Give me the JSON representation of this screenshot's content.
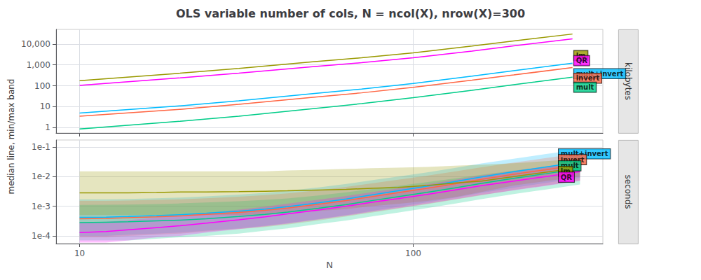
{
  "chart_data": [
    {
      "type": "line",
      "title": "OLS variable number of cols, N = ncol(X), nrow(X)=300",
      "ylabel": "median line, min/max band",
      "side_label": "kilobytes",
      "log": true,
      "grid": true,
      "tick_labels": "y",
      "x": [
        10,
        20,
        30,
        50,
        70,
        100,
        150,
        200,
        300
      ],
      "xlim": [
        8.5,
        370
      ],
      "xticks": [
        10,
        100
      ],
      "ylim": [
        0.55,
        50000
      ],
      "yticks": [
        1,
        10,
        100,
        {
          "value": 1000,
          "label": "1,000"
        },
        {
          "value": 10000,
          "label": "10,000"
        }
      ],
      "series": [
        {
          "name": "lm",
          "color": "#999900",
          "values": [
            175,
            400,
            680,
            1400,
            2200,
            3800,
            8000,
            14000,
            30000
          ],
          "lo": [
            170,
            390,
            665,
            1370,
            2150,
            3720,
            7840,
            13720,
            29400
          ],
          "hi": [
            180,
            410,
            695,
            1430,
            2250,
            3880,
            8160,
            14280,
            30600
          ]
        },
        {
          "name": "QR",
          "color": "#FF00FF",
          "values": [
            105,
            240,
            400,
            820,
            1270,
            2200,
            4600,
            8200,
            17500
          ],
          "lo": [
            100,
            232,
            388,
            796,
            1232,
            2134,
            4462,
            7954,
            16975
          ],
          "hi": [
            110,
            248,
            412,
            844,
            1308,
            2266,
            4738,
            8446,
            18025
          ]
        },
        {
          "name": "mult+invert",
          "color": "#00BBFF",
          "values": [
            5.0,
            11,
            19,
            42,
            70,
            130,
            290,
            530,
            1200
          ],
          "lo": [
            4.8,
            10.6,
            18.4,
            40.7,
            67.9,
            126.1,
            281.3,
            514.1,
            1164.0
          ],
          "hi": [
            5.2,
            11.4,
            19.6,
            43.3,
            72.1,
            133.9,
            298.7,
            545.9,
            1236.0
          ]
        },
        {
          "name": "invert",
          "color": "#FF6644",
          "values": [
            3.5,
            7.5,
            13,
            28,
            46,
            85,
            185,
            330,
            750
          ],
          "lo": [
            3.36,
            7.2,
            12.61,
            27.16,
            44.62,
            82.45,
            179.45,
            320.1,
            727.5
          ],
          "hi": [
            3.64,
            7.8,
            13.39,
            28.84,
            47.38,
            87.55,
            190.55,
            339.9,
            772.5
          ]
        },
        {
          "name": "mult",
          "color": "#00CC88",
          "values": [
            0.85,
            2.0,
            3.5,
            8.0,
            14,
            27,
            61,
            112,
            260
          ],
          "lo": [
            0.816,
            1.92,
            3.395,
            7.76,
            13.58,
            26.19,
            59.17,
            108.64,
            252.2
          ],
          "hi": [
            0.884,
            2.08,
            3.605,
            8.24,
            14.42,
            27.81,
            62.83,
            115.36,
            267.8
          ]
        }
      ],
      "annotations": [
        {
          "text": "lm",
          "x": 300,
          "y": 2800
        },
        {
          "text": "QR",
          "x": 300,
          "y": 1600
        },
        {
          "text": "mult+invert",
          "x": 300,
          "y": 380
        },
        {
          "text": "invert",
          "x": 300,
          "y": 230
        },
        {
          "text": "mult",
          "x": 300,
          "y": 85
        }
      ]
    },
    {
      "type": "line",
      "xlabel": "N",
      "side_label": "seconds",
      "log": true,
      "grid": true,
      "tick_labels": true,
      "x": [
        10,
        12,
        14,
        17,
        20,
        24,
        30,
        36,
        42,
        52,
        63,
        75,
        90,
        110,
        133,
        160,
        200,
        250,
        316
      ],
      "xlim": [
        8.5,
        370
      ],
      "xticks": [
        10,
        100
      ],
      "ylim": [
        5.5e-05,
        0.17
      ],
      "yticks": [
        {
          "value": 0.0001,
          "label": "1e-4"
        },
        {
          "value": 0.001,
          "label": "1e-3"
        },
        {
          "value": 0.01,
          "label": "1e-2"
        },
        {
          "value": 0.1,
          "label": "1e-1"
        }
      ],
      "series": [
        {
          "name": "mult+invert",
          "color": "#00BBFF",
          "values": [
            0.00042,
            0.00043,
            0.00045,
            0.00048,
            0.00052,
            0.00058,
            0.00068,
            0.0008,
            0.00096,
            0.0013,
            0.00175,
            0.0024,
            0.0033,
            0.0047,
            0.0067,
            0.0097,
            0.0145,
            0.021,
            0.031
          ],
          "lo": [
            0.0001,
            0.0001,
            0.00011,
            0.00012,
            0.00013,
            0.00015,
            0.00018,
            0.00022,
            0.00027,
            0.00037,
            0.0005,
            0.00069,
            0.00095,
            0.00136,
            0.00194,
            0.00281,
            0.0042,
            0.00608,
            0.00898
          ],
          "hi": [
            0.0017,
            0.0017,
            0.00175,
            0.00185,
            0.00195,
            0.00215,
            0.00245,
            0.0028,
            0.0033,
            0.0043,
            0.0056,
            0.0075,
            0.01,
            0.0138,
            0.0194,
            0.0275,
            0.04,
            0.057,
            0.082
          ]
        },
        {
          "name": "invert",
          "color": "#FF6644",
          "values": [
            0.00038,
            0.00039,
            0.00041,
            0.00044,
            0.00047,
            0.00053,
            0.00062,
            0.00073,
            0.00087,
            0.00116,
            0.00156,
            0.0021,
            0.00285,
            0.004,
            0.00565,
            0.008,
            0.0119,
            0.017,
            0.025
          ],
          "lo": [
            9e-05,
            9e-05,
            0.0001,
            0.00011,
            0.00012,
            0.00014,
            0.00017,
            0.0002,
            0.00024,
            0.00033,
            0.00045,
            0.00061,
            0.00083,
            0.00117,
            0.00165,
            0.00234,
            0.00349,
            0.00499,
            0.00734
          ],
          "hi": [
            0.0015,
            0.0015,
            0.00155,
            0.00163,
            0.0017,
            0.00185,
            0.00208,
            0.00235,
            0.0027,
            0.00345,
            0.0045,
            0.0059,
            0.0078,
            0.0106,
            0.0147,
            0.0204,
            0.0296,
            0.0418,
            0.06
          ]
        },
        {
          "name": "mult",
          "color": "#00CC88",
          "values": [
            0.00028,
            0.00029,
            0.0003,
            0.00032,
            0.00034,
            0.00038,
            0.00045,
            0.00053,
            0.00063,
            0.00085,
            0.00114,
            0.00154,
            0.00209,
            0.00293,
            0.00414,
            0.00586,
            0.00873,
            0.01246,
            0.01833
          ],
          "lo": [
            7e-05,
            7e-05,
            7e-05,
            8e-05,
            9e-05,
            0.0001,
            0.00012,
            0.00015,
            0.00018,
            0.00025,
            0.00033,
            0.00045,
            0.00061,
            0.00086,
            0.00122,
            0.00172,
            0.00256,
            0.00366,
            0.00539
          ],
          "hi": [
            0.0011,
            0.00112,
            0.00114,
            0.00119,
            0.00124,
            0.00133,
            0.00147,
            0.00163,
            0.00183,
            0.0023,
            0.00294,
            0.00377,
            0.00483,
            0.00641,
            0.00857,
            0.01146,
            0.0157,
            0.0209,
            0.0282
          ]
        },
        {
          "name": "lm",
          "color": "#999900",
          "values": [
            0.0028,
            0.0028,
            0.0028,
            0.0029,
            0.003,
            0.003,
            0.0031,
            0.0032,
            0.0033,
            0.0035,
            0.0037,
            0.004,
            0.0043,
            0.005,
            0.006,
            0.007,
            0.01,
            0.014,
            0.02
          ],
          "lo": [
            0.0005,
            0.0005,
            0.0005,
            0.0005,
            0.0005,
            0.0005,
            0.0005,
            0.0005,
            0.0006,
            0.0007,
            0.0008,
            0.001,
            0.0012,
            0.0015,
            0.002,
            0.003,
            0.005,
            0.007,
            0.01
          ],
          "hi": [
            0.015,
            0.015,
            0.015,
            0.015,
            0.015,
            0.015,
            0.015,
            0.015,
            0.016,
            0.017,
            0.018,
            0.019,
            0.02,
            0.021,
            0.023,
            0.025,
            0.028,
            0.033,
            0.04
          ]
        },
        {
          "name": "QR",
          "color": "#FF00FF",
          "values": [
            0.00013,
            0.00014,
            0.00016,
            0.00019,
            0.00022,
            0.00027,
            0.00035,
            0.00044,
            0.00055,
            0.00075,
            0.001,
            0.00135,
            0.0018,
            0.0025,
            0.0035,
            0.0049,
            0.007,
            0.01,
            0.0145
          ],
          "lo": [
            6e-05,
            6e-05,
            7e-05,
            9e-05,
            0.0001,
            0.00013,
            0.00017,
            0.00021,
            0.00026,
            0.00036,
            0.00048,
            0.00065,
            0.00087,
            0.00121,
            0.0017,
            0.00238,
            0.0034,
            0.00486,
            0.00705
          ],
          "hi": [
            0.00028,
            0.0003,
            0.00034,
            0.00042,
            0.00048,
            0.00059,
            0.00077,
            0.00097,
            0.00121,
            0.00165,
            0.0022,
            0.00297,
            0.00396,
            0.0055,
            0.0077,
            0.01078,
            0.0154,
            0.022,
            0.0319
          ]
        }
      ],
      "annotations": [
        {
          "text": "mult+invert",
          "x": 270,
          "y": 0.058
        },
        {
          "text": "invert",
          "x": 270,
          "y": 0.037
        },
        {
          "text": "mult",
          "x": 270,
          "y": 0.023
        },
        {
          "text": "lm",
          "x": 270,
          "y": 0.015
        },
        {
          "text": "QR",
          "x": 270,
          "y": 0.0095
        }
      ]
    }
  ]
}
